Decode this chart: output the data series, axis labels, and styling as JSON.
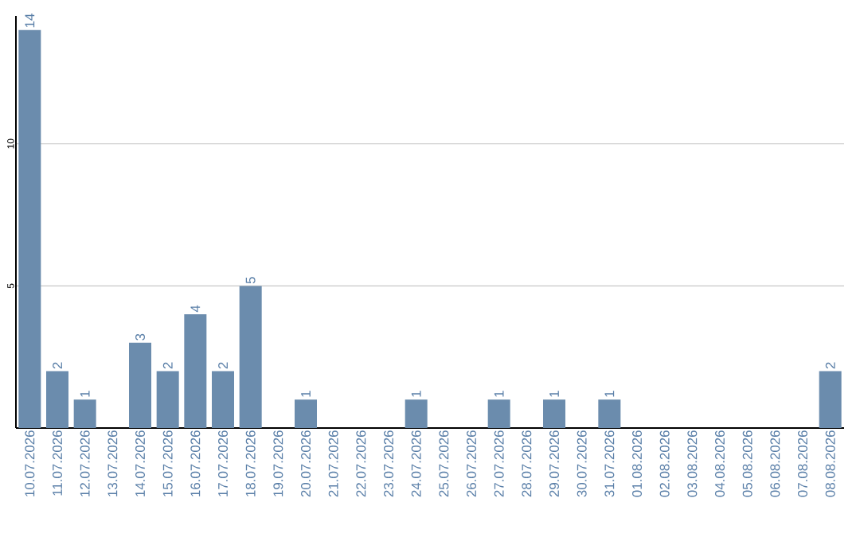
{
  "chart_data": {
    "type": "bar",
    "categories": [
      "10.07.2026",
      "11.07.2026",
      "12.07.2026",
      "13.07.2026",
      "14.07.2026",
      "15.07.2026",
      "16.07.2026",
      "17.07.2026",
      "18.07.2026",
      "19.07.2026",
      "20.07.2026",
      "21.07.2026",
      "22.07.2026",
      "23.07.2026",
      "24.07.2026",
      "25.07.2026",
      "26.07.2026",
      "27.07.2026",
      "28.07.2026",
      "29.07.2026",
      "30.07.2026",
      "31.07.2026",
      "01.08.2026",
      "02.08.2026",
      "03.08.2026",
      "04.08.2026",
      "05.08.2026",
      "06.08.2026",
      "07.08.2026",
      "08.08.2026"
    ],
    "values": [
      14,
      2,
      1,
      0,
      3,
      2,
      4,
      2,
      5,
      0,
      1,
      0,
      0,
      0,
      1,
      0,
      0,
      1,
      0,
      1,
      0,
      1,
      0,
      0,
      0,
      0,
      0,
      0,
      0,
      2
    ],
    "value_labels": [
      "14",
      "2",
      "1",
      null,
      "3",
      "2",
      "4",
      "2",
      "5",
      null,
      "1",
      null,
      null,
      null,
      "1",
      null,
      null,
      "1",
      null,
      "1",
      null,
      "1",
      null,
      null,
      null,
      null,
      null,
      null,
      null,
      "2"
    ],
    "color": "#6b8cad",
    "ylim": [
      0,
      14.5
    ],
    "yticks": [
      5,
      10
    ],
    "grid": "y"
  }
}
